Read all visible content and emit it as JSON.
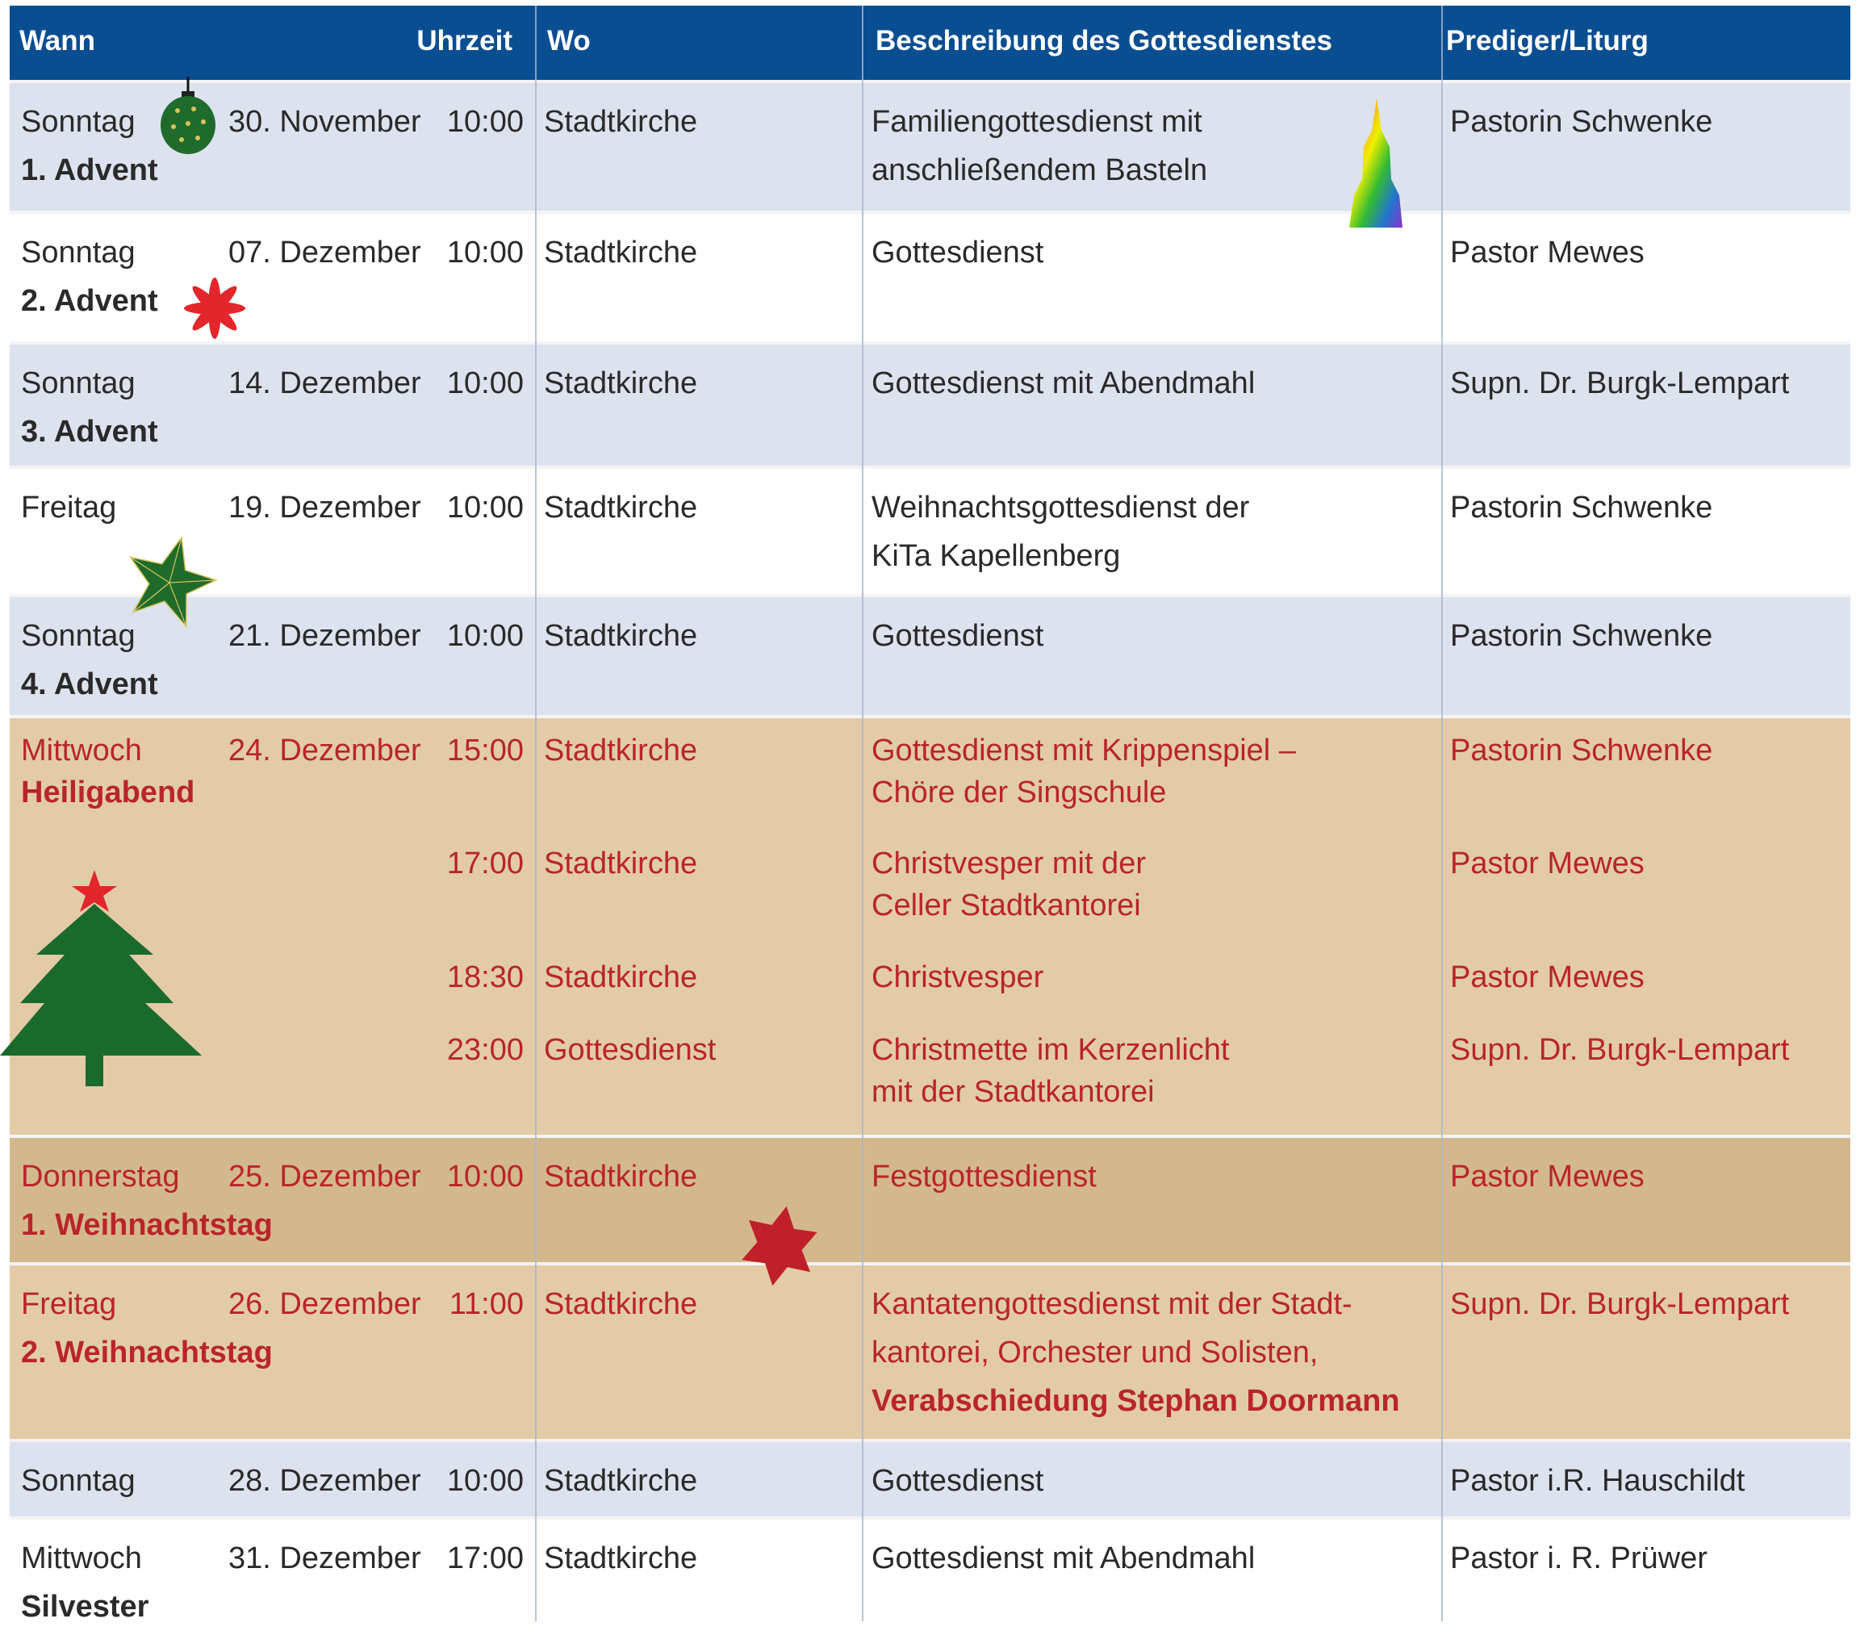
{
  "header": {
    "when": "Wann",
    "time": "Uhrzeit",
    "where": "Wo",
    "description": "Beschreibung des Gottesdienstes",
    "preacher": "Prediger/Liturg"
  },
  "colors": {
    "header": "#0a4e92",
    "row_blue": "#dde2ef",
    "row_white": "#ffffff",
    "row_tan": "#e3cba8",
    "row_tan_dark": "#d4b88d",
    "text_red": "#b8252a",
    "text_dark": "#2a2a2a"
  },
  "decorations": [
    "christmas-ornament-icon",
    "red-flower-icon",
    "green-star-icon",
    "christmas-tree-icon",
    "red-star-icon",
    "church-tower-icon"
  ],
  "rows": [
    {
      "style": "blue",
      "red": false,
      "day": "Sonntag",
      "date": "30. November",
      "holiday": "1. Advent",
      "entries": [
        {
          "time": "10:00",
          "place": "Stadtkirche",
          "description": [
            "Familiengottesdienst mit",
            "anschließendem Basteln"
          ],
          "preacher": "Pastorin Schwenke"
        }
      ]
    },
    {
      "style": "white",
      "red": false,
      "day": "Sonntag",
      "date": "07. Dezember",
      "holiday": "2. Advent",
      "entries": [
        {
          "time": "10:00",
          "place": "Stadtkirche",
          "description": [
            "Gottesdienst"
          ],
          "preacher": "Pastor Mewes"
        }
      ]
    },
    {
      "style": "blue",
      "red": false,
      "day": "Sonntag",
      "date": "14. Dezember",
      "holiday": "3. Advent",
      "entries": [
        {
          "time": "10:00",
          "place": "Stadtkirche",
          "description": [
            "Gottesdienst mit Abendmahl"
          ],
          "preacher": "Supn. Dr. Burgk-Lempart"
        }
      ]
    },
    {
      "style": "white",
      "red": false,
      "day": "Freitag",
      "date": "19. Dezember",
      "holiday": "",
      "entries": [
        {
          "time": "10:00",
          "place": "Stadtkirche",
          "description": [
            "Weihnachtsgottesdienst der",
            "KiTa Kapellenberg"
          ],
          "preacher": "Pastorin Schwenke"
        }
      ]
    },
    {
      "style": "blue",
      "red": false,
      "day": "Sonntag",
      "date": "21. Dezember",
      "holiday": "4. Advent",
      "entries": [
        {
          "time": "10:00",
          "place": "Stadtkirche",
          "description": [
            "Gottesdienst"
          ],
          "preacher": "Pastorin Schwenke"
        }
      ]
    },
    {
      "style": "tan",
      "red": true,
      "day": "Mittwoch",
      "date": "24. Dezember",
      "holiday": "Heiligabend",
      "entries": [
        {
          "time": "15:00",
          "place": "Stadtkirche",
          "description": [
            "Gottesdienst mit Krippenspiel –",
            "Chöre der Singschule"
          ],
          "preacher": "Pastorin Schwenke"
        },
        {
          "time": "17:00",
          "place": "Stadtkirche",
          "description": [
            "Christvesper mit der",
            "Celler Stadtkantorei"
          ],
          "preacher": "Pastor Mewes"
        },
        {
          "time": "18:30",
          "place": "Stadtkirche",
          "description": [
            "Christvesper"
          ],
          "preacher": "Pastor Mewes"
        },
        {
          "time": "23:00",
          "place": "Gottesdienst",
          "description": [
            "Christmette im Kerzenlicht",
            "mit der Stadtkantorei"
          ],
          "preacher": "Supn. Dr. Burgk-Lempart"
        }
      ]
    },
    {
      "style": "tan-dark",
      "red": true,
      "day": "Donnerstag",
      "date": "25. Dezember",
      "holiday": "1. Weihnachtstag",
      "entries": [
        {
          "time": "10:00",
          "place": "Stadtkirche",
          "description": [
            "Festgottesdienst"
          ],
          "preacher": "Pastor Mewes"
        }
      ]
    },
    {
      "style": "tan",
      "red": true,
      "day": "Freitag",
      "date": "26. Dezember",
      "holiday": "2. Weihnachtstag",
      "entries": [
        {
          "time": "11:00",
          "place": "Stadtkirche",
          "description": [
            "Kantatengottesdienst mit der Stadt-",
            "kantorei, Orchester und Solisten,"
          ],
          "description_bold": "Verabschiedung Stephan Doormann",
          "preacher": "Supn. Dr. Burgk-Lempart"
        }
      ]
    },
    {
      "style": "blue",
      "red": false,
      "day": "Sonntag",
      "date": "28. Dezember",
      "holiday": "",
      "entries": [
        {
          "time": "10:00",
          "place": "Stadtkirche",
          "description": [
            "Gottesdienst"
          ],
          "preacher": "Pastor i.R. Hauschildt"
        }
      ]
    },
    {
      "style": "white",
      "red": false,
      "day": "Mittwoch",
      "date": "31. Dezember",
      "holiday": "Silvester",
      "entries": [
        {
          "time": "17:00",
          "place": "Stadtkirche",
          "description": [
            "Gottesdienst mit Abendmahl"
          ],
          "preacher": "Pastor i. R. Prüwer"
        }
      ]
    }
  ]
}
